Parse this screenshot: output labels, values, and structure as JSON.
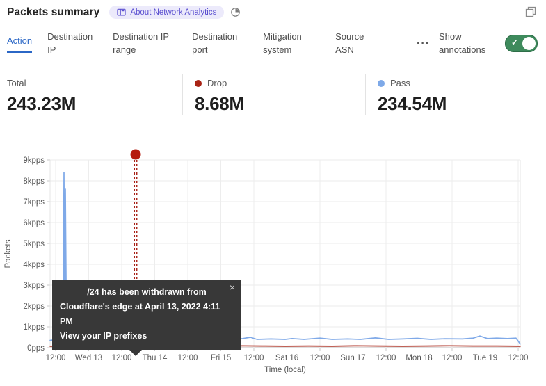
{
  "header": {
    "title": "Packets summary",
    "about_badge": "About Network Analytics"
  },
  "tabs": {
    "items": [
      {
        "label": "Action",
        "active": true
      },
      {
        "label": "Destination IP",
        "active": false
      },
      {
        "label": "Destination IP range",
        "active": false
      },
      {
        "label": "Destination port",
        "active": false
      },
      {
        "label": "Mitigation system",
        "active": false
      },
      {
        "label": "Source ASN",
        "active": false
      }
    ],
    "more": "···",
    "show_annotations_label": "Show annotations",
    "toggle_on": true
  },
  "stats": {
    "items": [
      {
        "label": "Total",
        "value": "243.23M",
        "dot_color": ""
      },
      {
        "label": "Drop",
        "value": "8.68M",
        "dot_color": "#a92315"
      },
      {
        "label": "Pass",
        "value": "234.54M",
        "dot_color": "#7ea9e8"
      }
    ]
  },
  "annotation_tooltip": {
    "line1": "/24 has been withdrawn from",
    "line2": "Cloudflare's edge at April 13, 2022 4:11 PM",
    "link": "View your IP prefixes",
    "close": "×"
  },
  "chart_data": {
    "type": "line",
    "xlabel": "Time (local)",
    "ylabel": "Packets",
    "ylim_kpps": [
      0,
      9
    ],
    "grid": true,
    "y_ticks": [
      {
        "v": 0,
        "label": "0pps"
      },
      {
        "v": 1,
        "label": "1kpps"
      },
      {
        "v": 2,
        "label": "2kpps"
      },
      {
        "v": 3,
        "label": "3kpps"
      },
      {
        "v": 4,
        "label": "4kpps"
      },
      {
        "v": 5,
        "label": "5kpps"
      },
      {
        "v": 6,
        "label": "6kpps"
      },
      {
        "v": 7,
        "label": "7kpps"
      },
      {
        "v": 8,
        "label": "8kpps"
      },
      {
        "v": 9,
        "label": "9kpps"
      }
    ],
    "x_ticks": [
      {
        "f": 0.0118,
        "label": "12:00"
      },
      {
        "f": 0.0821,
        "label": "Wed 13"
      },
      {
        "f": 0.1524,
        "label": "12:00"
      },
      {
        "f": 0.2226,
        "label": "Thu 14"
      },
      {
        "f": 0.2929,
        "label": "12:00"
      },
      {
        "f": 0.3632,
        "label": "Fri 15"
      },
      {
        "f": 0.4334,
        "label": "12:00"
      },
      {
        "f": 0.5037,
        "label": "Sat 16"
      },
      {
        "f": 0.574,
        "label": "12:00"
      },
      {
        "f": 0.6442,
        "label": "Sun 17"
      },
      {
        "f": 0.7145,
        "label": "12:00"
      },
      {
        "f": 0.7848,
        "label": "Mon 18"
      },
      {
        "f": 0.855,
        "label": "12:00"
      },
      {
        "f": 0.9253,
        "label": "Tue 19"
      },
      {
        "f": 0.9956,
        "label": "12:00"
      }
    ],
    "series": [
      {
        "name": "Pass",
        "color": "#7fa9e8",
        "points": [
          [
            0.0,
            0.35
          ],
          [
            0.01,
            0.38
          ],
          [
            0.02,
            0.36
          ],
          [
            0.0255,
            0.45
          ],
          [
            0.0281,
            0.55
          ],
          [
            0.0296,
            8.4
          ],
          [
            0.0311,
            1.2
          ],
          [
            0.0326,
            7.6
          ],
          [
            0.0348,
            1.1
          ],
          [
            0.0414,
            1.25
          ],
          [
            0.0488,
            0.8
          ],
          [
            0.0592,
            0.5
          ],
          [
            0.0784,
            0.42
          ],
          [
            0.1,
            0.44
          ],
          [
            0.108,
            0.52
          ],
          [
            0.118,
            0.4
          ],
          [
            0.13,
            0.38
          ],
          [
            0.15,
            0.4
          ],
          [
            0.167,
            0.57
          ],
          [
            0.18,
            0.4
          ],
          [
            0.2,
            0.4
          ],
          [
            0.216,
            0.46
          ],
          [
            0.23,
            0.38
          ],
          [
            0.25,
            0.42
          ],
          [
            0.27,
            0.38
          ],
          [
            0.29,
            0.4
          ],
          [
            0.31,
            0.42
          ],
          [
            0.337,
            0.46
          ],
          [
            0.36,
            0.4
          ],
          [
            0.382,
            0.4
          ],
          [
            0.41,
            0.44
          ],
          [
            0.426,
            0.5
          ],
          [
            0.44,
            0.4
          ],
          [
            0.47,
            0.42
          ],
          [
            0.5,
            0.4
          ],
          [
            0.515,
            0.44
          ],
          [
            0.54,
            0.4
          ],
          [
            0.574,
            0.46
          ],
          [
            0.6,
            0.4
          ],
          [
            0.633,
            0.42
          ],
          [
            0.66,
            0.4
          ],
          [
            0.692,
            0.47
          ],
          [
            0.72,
            0.4
          ],
          [
            0.75,
            0.42
          ],
          [
            0.781,
            0.45
          ],
          [
            0.81,
            0.4
          ],
          [
            0.84,
            0.43
          ],
          [
            0.877,
            0.42
          ],
          [
            0.9,
            0.46
          ],
          [
            0.914,
            0.56
          ],
          [
            0.93,
            0.44
          ],
          [
            0.95,
            0.46
          ],
          [
            0.973,
            0.44
          ],
          [
            0.991,
            0.46
          ],
          [
            1.0,
            0.18
          ]
        ]
      },
      {
        "name": "Drop",
        "color": "#a92a1c",
        "points": [
          [
            0.0,
            0.07
          ],
          [
            0.05,
            0.08
          ],
          [
            0.1,
            0.07
          ],
          [
            0.15,
            0.09
          ],
          [
            0.2,
            0.08
          ],
          [
            0.24,
            0.08
          ],
          [
            0.255,
            0.1
          ],
          [
            0.263,
            0.45
          ],
          [
            0.271,
            0.1
          ],
          [
            0.3,
            0.08
          ],
          [
            0.35,
            0.07
          ],
          [
            0.4,
            0.09
          ],
          [
            0.45,
            0.08
          ],
          [
            0.5,
            0.07
          ],
          [
            0.55,
            0.08
          ],
          [
            0.6,
            0.07
          ],
          [
            0.65,
            0.09
          ],
          [
            0.7,
            0.08
          ],
          [
            0.75,
            0.07
          ],
          [
            0.8,
            0.08
          ],
          [
            0.85,
            0.09
          ],
          [
            0.9,
            0.08
          ],
          [
            0.95,
            0.08
          ],
          [
            1.0,
            0.07
          ]
        ]
      }
    ],
    "annotation": {
      "f": 0.182,
      "line_color": "#a82015",
      "dot_color": "#b51b0e"
    }
  }
}
